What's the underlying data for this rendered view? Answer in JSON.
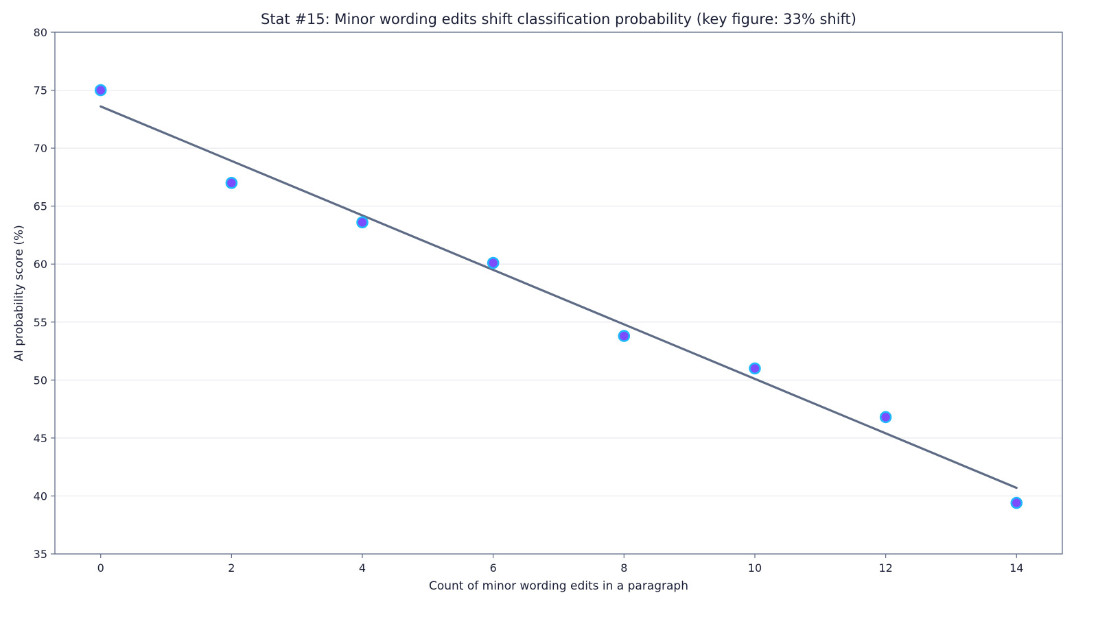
{
  "chart_data": {
    "type": "scatter",
    "title": "Stat #15: Minor wording edits shift classification probability (key figure: 33% shift)",
    "xlabel": "Count of minor wording edits in a paragraph",
    "ylabel": "AI probability score (%)",
    "xlim": [
      -0.7,
      14.7
    ],
    "ylim": [
      35,
      80
    ],
    "xticks": [
      0,
      2,
      4,
      6,
      8,
      10,
      12,
      14
    ],
    "yticks": [
      35,
      40,
      45,
      50,
      55,
      60,
      65,
      70,
      75,
      80
    ],
    "grid": "horizontal",
    "series": [
      {
        "type": "scatter",
        "x": [
          0,
          2,
          4,
          6,
          8,
          10,
          12,
          14
        ],
        "y": [
          75.0,
          67.0,
          63.6,
          60.1,
          53.8,
          51.0,
          46.8,
          39.4
        ]
      },
      {
        "type": "line",
        "x": [
          0,
          14
        ],
        "y": [
          73.6,
          40.7
        ]
      }
    ],
    "colors": {
      "marker_fill": "#7B4DFF",
      "marker_edge": "#1FB8FF",
      "trend_line": "#5E6B85",
      "axis": "#5E6B85",
      "grid": "#E6E8EE"
    }
  }
}
